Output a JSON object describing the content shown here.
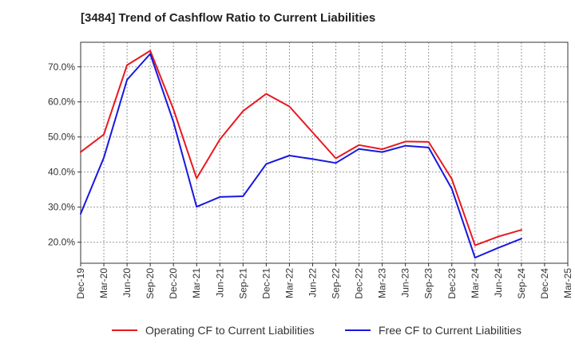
{
  "chart_data": {
    "type": "line",
    "title": "[3484]  Trend of Cashflow Ratio to Current Liabilities",
    "xlabel": "",
    "ylabel": "",
    "categories": [
      "Dec-19",
      "Mar-20",
      "Jun-20",
      "Sep-20",
      "Dec-20",
      "Mar-21",
      "Jun-21",
      "Sep-21",
      "Dec-21",
      "Mar-22",
      "Jun-22",
      "Sep-22",
      "Dec-22",
      "Mar-23",
      "Jun-23",
      "Sep-23",
      "Dec-23",
      "Mar-24",
      "Jun-24",
      "Sep-24",
      "Dec-24",
      "Mar-25"
    ],
    "ylim": [
      14,
      77
    ],
    "yticks": [
      20,
      30,
      40,
      50,
      60,
      70
    ],
    "ytick_labels": [
      "20.0%",
      "30.0%",
      "40.0%",
      "50.0%",
      "60.0%",
      "70.0%"
    ],
    "grid": true,
    "legend_position": "bottom",
    "series": [
      {
        "name": "Operating CF to Current Liabilities",
        "color": "#e8191f",
        "values": [
          45.7,
          50.7,
          70.5,
          74.6,
          57.9,
          38.2,
          49.3,
          57.4,
          62.3,
          58.7,
          51.3,
          43.9,
          47.7,
          46.5,
          48.7,
          48.6,
          38.0,
          19.1,
          21.6,
          23.5,
          null,
          null
        ]
      },
      {
        "name": "Free CF to Current Liabilities",
        "color": "#1818e0",
        "values": [
          28.1,
          44.1,
          66.3,
          73.7,
          54.3,
          30.1,
          32.9,
          33.1,
          42.3,
          44.7,
          43.7,
          42.6,
          46.6,
          45.7,
          47.5,
          47.0,
          35.2,
          15.6,
          18.4,
          21.0,
          null,
          null
        ]
      }
    ]
  }
}
